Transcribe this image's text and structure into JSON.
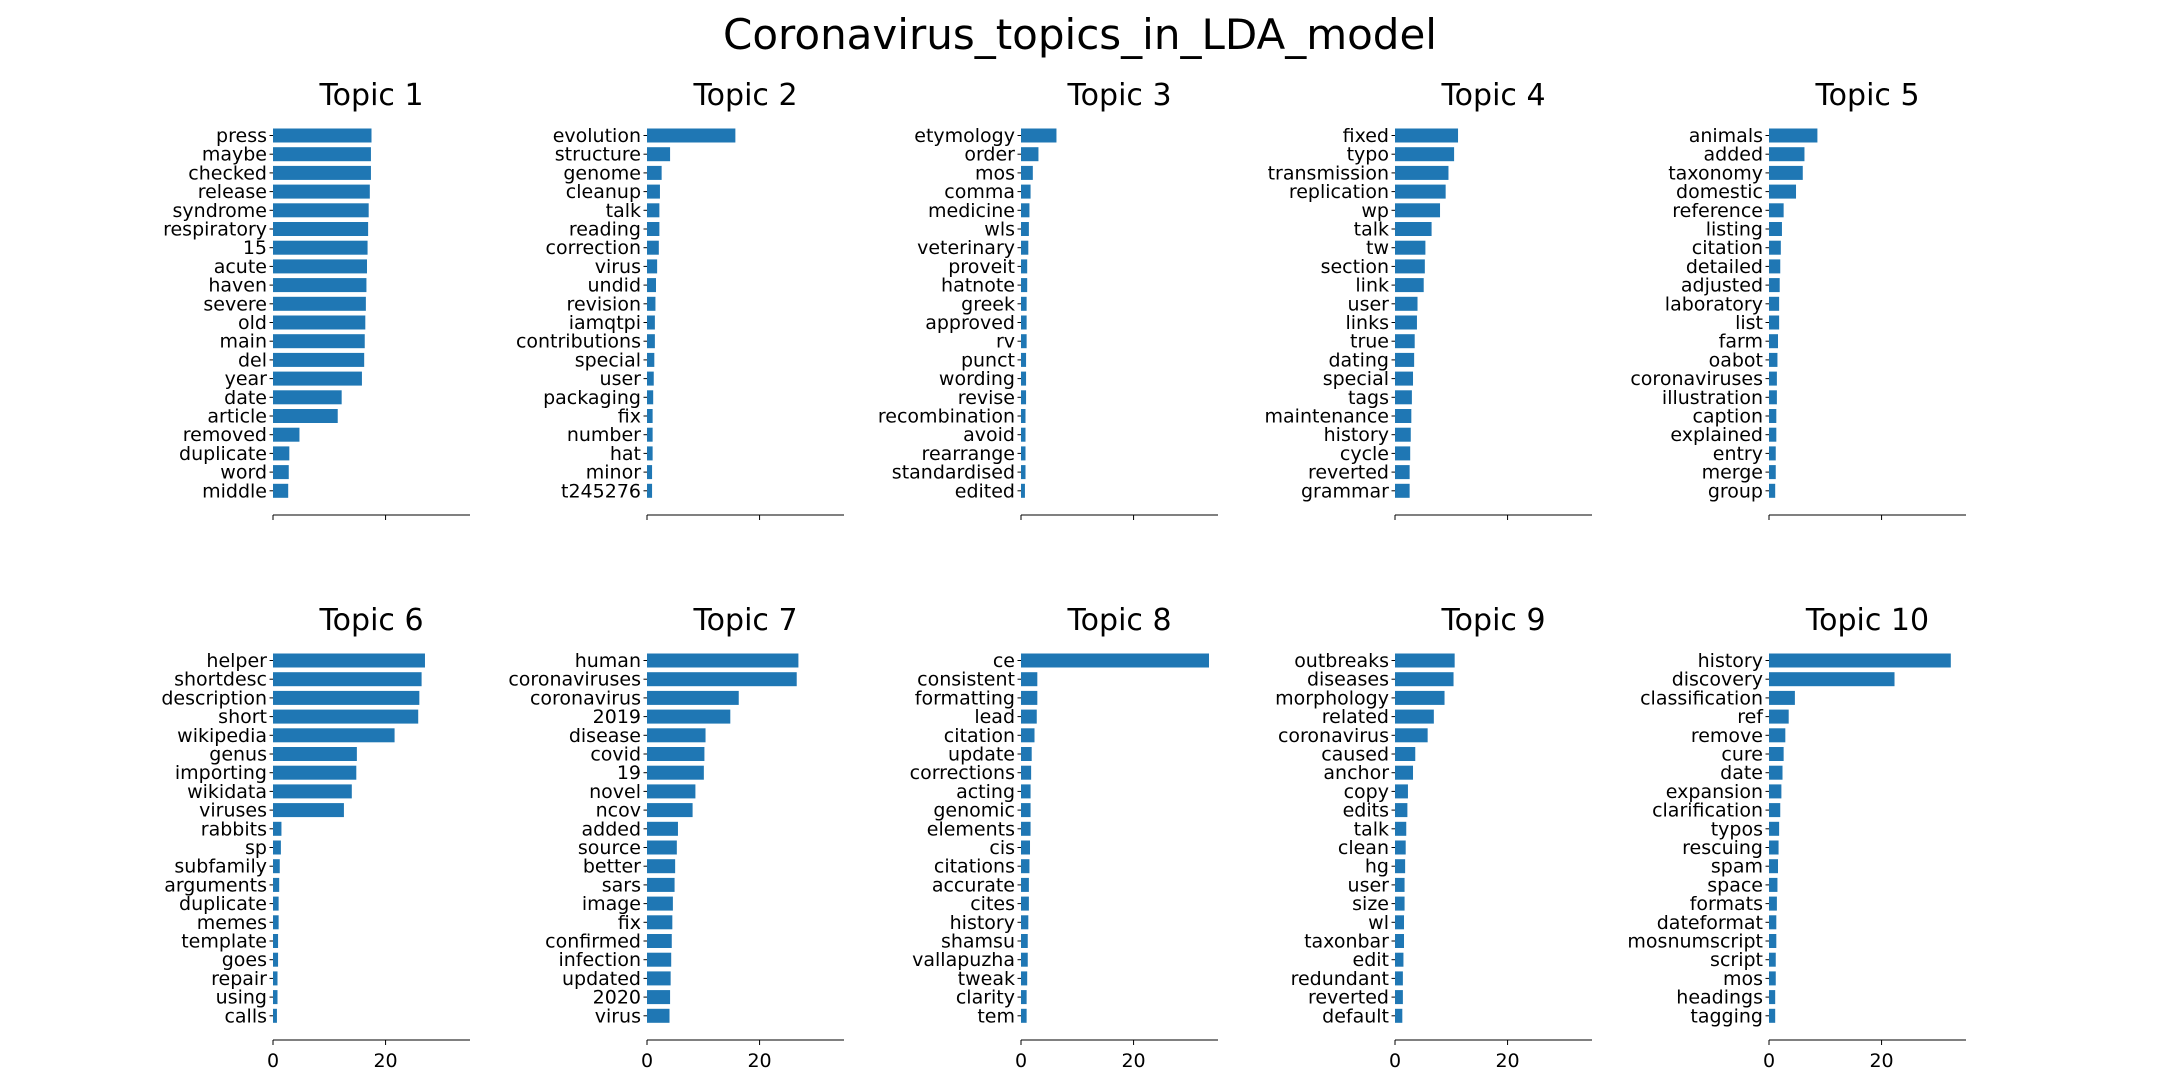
{
  "title": "Coronavirus_topics_in_LDA_model",
  "colors": {
    "bar": "#1f77b4",
    "axis": "#000000",
    "text": "#000000"
  },
  "chart_data": [
    {
      "type": "bar",
      "orientation": "horizontal",
      "title": "Topic 1",
      "xlim": [
        0,
        35
      ],
      "xticks": [
        0,
        20
      ],
      "show_xtick_labels": false,
      "categories": [
        "press",
        "maybe",
        "checked",
        "release",
        "syndrome",
        "respiratory",
        "15",
        "acute",
        "haven",
        "severe",
        "old",
        "main",
        "del",
        "year",
        "date",
        "article",
        "removed",
        "duplicate",
        "word",
        "middle"
      ],
      "values": [
        17.5,
        17.4,
        17.4,
        17.2,
        17.0,
        16.9,
        16.8,
        16.7,
        16.6,
        16.5,
        16.4,
        16.3,
        16.2,
        15.8,
        12.2,
        11.5,
        4.7,
        2.9,
        2.8,
        2.7
      ]
    },
    {
      "type": "bar",
      "orientation": "horizontal",
      "title": "Topic 2",
      "xlim": [
        0,
        35
      ],
      "xticks": [
        0,
        20
      ],
      "show_xtick_labels": false,
      "categories": [
        "evolution",
        "structure",
        "genome",
        "cleanup",
        "talk",
        "reading",
        "correction",
        "virus",
        "undid",
        "revision",
        "iamqtpi",
        "contributions",
        "special",
        "user",
        "packaging",
        "fix",
        "number",
        "hat",
        "minor",
        "t245276"
      ],
      "values": [
        15.7,
        4.1,
        2.6,
        2.3,
        2.2,
        2.2,
        2.1,
        1.8,
        1.6,
        1.5,
        1.4,
        1.4,
        1.3,
        1.2,
        1.1,
        1.0,
        1.0,
        1.0,
        0.9,
        0.9
      ]
    },
    {
      "type": "bar",
      "orientation": "horizontal",
      "title": "Topic 3",
      "xlim": [
        0,
        35
      ],
      "xticks": [
        0,
        20
      ],
      "show_xtick_labels": false,
      "categories": [
        "etymology",
        "order",
        "mos",
        "comma",
        "medicine",
        "wls",
        "veterinary",
        "proveit",
        "hatnote",
        "greek",
        "approved",
        "rv",
        "punct",
        "wording",
        "revise",
        "recombination",
        "avoid",
        "rearrange",
        "standardised",
        "edited"
      ],
      "values": [
        6.3,
        3.1,
        2.1,
        1.7,
        1.5,
        1.4,
        1.3,
        1.1,
        1.1,
        1.0,
        1.0,
        1.0,
        0.9,
        0.9,
        0.9,
        0.8,
        0.8,
        0.8,
        0.8,
        0.7
      ]
    },
    {
      "type": "bar",
      "orientation": "horizontal",
      "title": "Topic 4",
      "xlim": [
        0,
        35
      ],
      "xticks": [
        0,
        20
      ],
      "show_xtick_labels": false,
      "categories": [
        "fixed",
        "typo",
        "transmission",
        "replication",
        "wp",
        "talk",
        "tw",
        "section",
        "link",
        "user",
        "links",
        "true",
        "dating",
        "special",
        "tags",
        "maintenance",
        "history",
        "cycle",
        "reverted",
        "grammar"
      ],
      "values": [
        11.2,
        10.5,
        9.5,
        9.0,
        8.0,
        6.5,
        5.4,
        5.3,
        5.1,
        4.0,
        3.9,
        3.5,
        3.4,
        3.2,
        3.0,
        2.9,
        2.8,
        2.7,
        2.6,
        2.6
      ]
    },
    {
      "type": "bar",
      "orientation": "horizontal",
      "title": "Topic 5",
      "xlim": [
        0,
        35
      ],
      "xticks": [
        0,
        20
      ],
      "show_xtick_labels": false,
      "categories": [
        "animals",
        "added",
        "taxonomy",
        "domestic",
        "reference",
        "listing",
        "citation",
        "detailed",
        "adjusted",
        "laboratory",
        "list",
        "farm",
        "oabot",
        "coronaviruses",
        "illustration",
        "caption",
        "explained",
        "entry",
        "merge",
        "group"
      ],
      "values": [
        8.6,
        6.3,
        6.0,
        4.8,
        2.6,
        2.3,
        2.1,
        2.0,
        1.9,
        1.8,
        1.8,
        1.6,
        1.5,
        1.4,
        1.4,
        1.3,
        1.3,
        1.2,
        1.2,
        1.1
      ]
    },
    {
      "type": "bar",
      "orientation": "horizontal",
      "title": "Topic 6",
      "xlim": [
        0,
        35
      ],
      "xticks": [
        0,
        20
      ],
      "show_xtick_labels": true,
      "categories": [
        "helper",
        "shortdesc",
        "description",
        "short",
        "wikipedia",
        "genus",
        "importing",
        "wikidata",
        "viruses",
        "rabbits",
        "sp",
        "subfamily",
        "arguments",
        "duplicate",
        "memes",
        "template",
        "goes",
        "repair",
        "using",
        "calls"
      ],
      "values": [
        27.0,
        26.4,
        26.0,
        25.8,
        21.6,
        14.9,
        14.8,
        14.0,
        12.6,
        1.5,
        1.4,
        1.2,
        1.1,
        1.0,
        1.0,
        0.9,
        0.9,
        0.8,
        0.8,
        0.7
      ]
    },
    {
      "type": "bar",
      "orientation": "horizontal",
      "title": "Topic 7",
      "xlim": [
        0,
        35
      ],
      "xticks": [
        0,
        20
      ],
      "show_xtick_labels": true,
      "categories": [
        "human",
        "coronaviruses",
        "coronavirus",
        "2019",
        "disease",
        "covid",
        "19",
        "novel",
        "ncov",
        "added",
        "source",
        "better",
        "sars",
        "image",
        "fix",
        "confirmed",
        "infection",
        "updated",
        "2020",
        "virus"
      ],
      "values": [
        26.9,
        26.6,
        16.3,
        14.8,
        10.4,
        10.2,
        10.1,
        8.6,
        8.1,
        5.5,
        5.3,
        5.0,
        4.9,
        4.6,
        4.5,
        4.4,
        4.3,
        4.2,
        4.1,
        4.0
      ]
    },
    {
      "type": "bar",
      "orientation": "horizontal",
      "title": "Topic 8",
      "xlim": [
        0,
        35
      ],
      "xticks": [
        0,
        20
      ],
      "show_xtick_labels": true,
      "categories": [
        "ce",
        "consistent",
        "formatting",
        "lead",
        "citation",
        "update",
        "corrections",
        "acting",
        "genomic",
        "elements",
        "cis",
        "citations",
        "accurate",
        "cites",
        "history",
        "shamsu",
        "vallapuzha",
        "tweak",
        "clarity",
        "tem"
      ],
      "values": [
        33.4,
        2.9,
        2.9,
        2.8,
        2.4,
        1.9,
        1.8,
        1.7,
        1.7,
        1.7,
        1.6,
        1.5,
        1.4,
        1.4,
        1.3,
        1.2,
        1.2,
        1.1,
        1.0,
        1.0
      ]
    },
    {
      "type": "bar",
      "orientation": "horizontal",
      "title": "Topic 9",
      "xlim": [
        0,
        35
      ],
      "xticks": [
        0,
        20
      ],
      "show_xtick_labels": true,
      "categories": [
        "outbreaks",
        "diseases",
        "morphology",
        "related",
        "coronavirus",
        "caused",
        "anchor",
        "copy",
        "edits",
        "talk",
        "clean",
        "hg",
        "user",
        "size",
        "wl",
        "taxonbar",
        "edit",
        "redundant",
        "reverted",
        "default"
      ],
      "values": [
        10.6,
        10.4,
        8.8,
        6.9,
        5.8,
        3.6,
        3.2,
        2.3,
        2.2,
        2.0,
        1.9,
        1.8,
        1.7,
        1.7,
        1.6,
        1.6,
        1.5,
        1.4,
        1.4,
        1.3
      ]
    },
    {
      "type": "bar",
      "orientation": "horizontal",
      "title": "Topic 10",
      "xlim": [
        0,
        35
      ],
      "xticks": [
        0,
        20
      ],
      "show_xtick_labels": true,
      "categories": [
        "history",
        "discovery",
        "classification",
        "ref",
        "remove",
        "cure",
        "date",
        "expansion",
        "clarification",
        "typos",
        "rescuing",
        "spam",
        "space",
        "formats",
        "dateformat",
        "mosnumscript",
        "script",
        "mos",
        "headings",
        "tagging"
      ],
      "values": [
        32.3,
        22.3,
        4.6,
        3.5,
        2.9,
        2.6,
        2.4,
        2.2,
        2.0,
        1.8,
        1.7,
        1.6,
        1.5,
        1.4,
        1.3,
        1.3,
        1.2,
        1.2,
        1.1,
        1.1
      ]
    }
  ]
}
